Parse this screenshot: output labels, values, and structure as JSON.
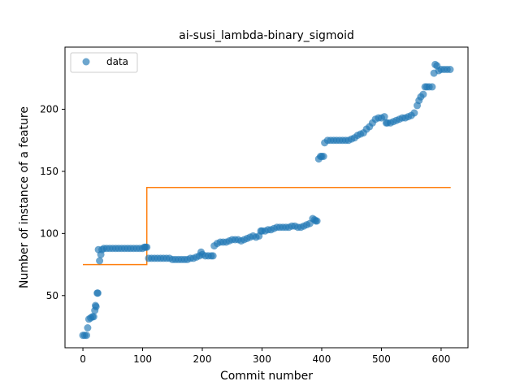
{
  "chart_data": {
    "type": "scatter",
    "title": "ai-susi_lambda-binary_sigmoid",
    "xlabel": "Commit number",
    "ylabel": "Number of instance of a feature",
    "xlim": [
      -30,
      645
    ],
    "ylim": [
      8,
      250
    ],
    "xticks": [
      0,
      100,
      200,
      300,
      400,
      500,
      600
    ],
    "yticks": [
      50,
      100,
      150,
      200
    ],
    "legend": {
      "placement": "top-left",
      "entries": [
        "data"
      ]
    },
    "colors": {
      "data": "#1f77b4",
      "step": "#ff7f0e"
    },
    "series": [
      {
        "name": "data",
        "kind": "scatter",
        "points": [
          [
            0,
            18
          ],
          [
            3,
            18
          ],
          [
            6,
            18
          ],
          [
            8,
            24
          ],
          [
            10,
            31
          ],
          [
            13,
            32
          ],
          [
            16,
            33
          ],
          [
            18,
            33
          ],
          [
            20,
            38
          ],
          [
            21,
            42
          ],
          [
            22,
            41
          ],
          [
            24,
            52
          ],
          [
            25,
            52
          ],
          [
            26,
            87
          ],
          [
            28,
            78
          ],
          [
            30,
            83
          ],
          [
            32,
            87
          ],
          [
            35,
            88
          ],
          [
            40,
            88
          ],
          [
            45,
            88
          ],
          [
            50,
            88
          ],
          [
            55,
            88
          ],
          [
            60,
            88
          ],
          [
            65,
            88
          ],
          [
            70,
            88
          ],
          [
            75,
            88
          ],
          [
            80,
            88
          ],
          [
            85,
            88
          ],
          [
            90,
            88
          ],
          [
            95,
            88
          ],
          [
            100,
            88
          ],
          [
            103,
            89
          ],
          [
            105,
            89
          ],
          [
            107,
            89
          ],
          [
            110,
            80
          ],
          [
            115,
            80
          ],
          [
            120,
            80
          ],
          [
            125,
            80
          ],
          [
            130,
            80
          ],
          [
            135,
            80
          ],
          [
            140,
            80
          ],
          [
            145,
            80
          ],
          [
            150,
            79
          ],
          [
            155,
            79
          ],
          [
            160,
            79
          ],
          [
            165,
            79
          ],
          [
            170,
            79
          ],
          [
            175,
            79
          ],
          [
            180,
            80
          ],
          [
            185,
            80
          ],
          [
            190,
            81
          ],
          [
            195,
            82
          ],
          [
            198,
            85
          ],
          [
            200,
            83
          ],
          [
            205,
            82
          ],
          [
            210,
            82
          ],
          [
            215,
            82
          ],
          [
            218,
            82
          ],
          [
            220,
            90
          ],
          [
            225,
            92
          ],
          [
            230,
            93
          ],
          [
            235,
            93
          ],
          [
            240,
            93
          ],
          [
            245,
            94
          ],
          [
            250,
            95
          ],
          [
            255,
            95
          ],
          [
            260,
            95
          ],
          [
            265,
            94
          ],
          [
            270,
            95
          ],
          [
            275,
            96
          ],
          [
            280,
            97
          ],
          [
            285,
            98
          ],
          [
            290,
            97
          ],
          [
            295,
            98
          ],
          [
            298,
            102
          ],
          [
            300,
            102
          ],
          [
            305,
            102
          ],
          [
            310,
            103
          ],
          [
            315,
            103
          ],
          [
            320,
            104
          ],
          [
            325,
            105
          ],
          [
            330,
            105
          ],
          [
            335,
            105
          ],
          [
            340,
            105
          ],
          [
            345,
            105
          ],
          [
            350,
            106
          ],
          [
            355,
            106
          ],
          [
            360,
            105
          ],
          [
            365,
            105
          ],
          [
            370,
            106
          ],
          [
            375,
            107
          ],
          [
            380,
            108
          ],
          [
            385,
            112
          ],
          [
            388,
            111
          ],
          [
            390,
            110
          ],
          [
            392,
            110
          ],
          [
            395,
            160
          ],
          [
            398,
            162
          ],
          [
            400,
            162
          ],
          [
            403,
            162
          ],
          [
            405,
            173
          ],
          [
            410,
            175
          ],
          [
            415,
            175
          ],
          [
            420,
            175
          ],
          [
            425,
            175
          ],
          [
            430,
            175
          ],
          [
            435,
            175
          ],
          [
            440,
            175
          ],
          [
            445,
            175
          ],
          [
            450,
            176
          ],
          [
            455,
            177
          ],
          [
            460,
            179
          ],
          [
            465,
            180
          ],
          [
            470,
            181
          ],
          [
            475,
            184
          ],
          [
            480,
            186
          ],
          [
            485,
            189
          ],
          [
            490,
            192
          ],
          [
            495,
            193
          ],
          [
            500,
            193
          ],
          [
            505,
            194
          ],
          [
            508,
            189
          ],
          [
            510,
            189
          ],
          [
            515,
            189
          ],
          [
            520,
            190
          ],
          [
            525,
            191
          ],
          [
            530,
            192
          ],
          [
            535,
            193
          ],
          [
            540,
            193
          ],
          [
            545,
            194
          ],
          [
            550,
            195
          ],
          [
            555,
            197
          ],
          [
            560,
            203
          ],
          [
            563,
            207
          ],
          [
            566,
            210
          ],
          [
            570,
            212
          ],
          [
            573,
            218
          ],
          [
            576,
            218
          ],
          [
            580,
            218
          ],
          [
            585,
            218
          ],
          [
            588,
            229
          ],
          [
            590,
            236
          ],
          [
            593,
            235
          ],
          [
            596,
            231
          ],
          [
            600,
            232
          ],
          [
            605,
            232
          ],
          [
            610,
            232
          ],
          [
            615,
            232
          ]
        ]
      },
      {
        "name": "",
        "kind": "step",
        "points": [
          [
            0,
            75
          ],
          [
            107,
            75
          ],
          [
            107,
            137
          ],
          [
            616,
            137
          ]
        ]
      }
    ]
  }
}
